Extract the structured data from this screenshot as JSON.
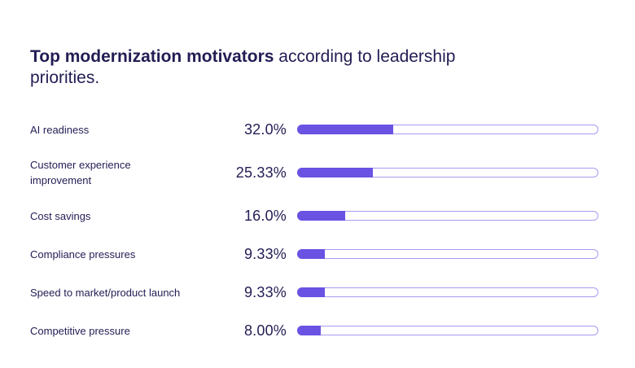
{
  "chart_data": {
    "type": "bar",
    "orientation": "horizontal",
    "title": {
      "bold": "Top modernization motivators",
      "regular": " according to leadership priorities."
    },
    "xlim": [
      0,
      100
    ],
    "unit": "%",
    "grid": false,
    "legend": "none",
    "rows": [
      {
        "label": "AI readiness",
        "value": 32.0,
        "value_label": "32.0%"
      },
      {
        "label": "Customer experience\nimprovement",
        "value": 25.33,
        "value_label": "25.33%"
      },
      {
        "label": "Cost savings",
        "value": 16.0,
        "value_label": "16.0%"
      },
      {
        "label": "Compliance pressures",
        "value": 9.33,
        "value_label": "9.33%"
      },
      {
        "label": "Speed to market/product launch",
        "value": 9.33,
        "value_label": "9.33%"
      },
      {
        "label": "Competitive pressure",
        "value": 8.0,
        "value_label": "8.00%"
      }
    ],
    "colors": {
      "bar_fill": "#6a52e2",
      "bar_track_border": "#a79cef",
      "bar_track_background": "#ffffff",
      "text": "#221d54",
      "background": "#ffffff"
    }
  }
}
